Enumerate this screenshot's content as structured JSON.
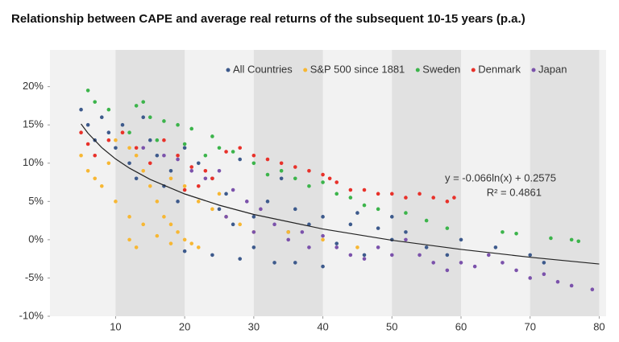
{
  "chart_data": {
    "type": "scatter",
    "title": "Relationship between CAPE and average real returns of the subsequent 10-15 years (p.a.)",
    "xlim": [
      0.5,
      81
    ],
    "ylim": [
      -10,
      24.8
    ],
    "xticks": [
      10,
      20,
      30,
      40,
      50,
      60,
      70,
      80
    ],
    "yticks": [
      {
        "value": -10,
        "label": "-10%"
      },
      {
        "value": -5,
        "label": "-5%"
      },
      {
        "value": 0,
        "label": "0%"
      },
      {
        "value": 5,
        "label": "5%"
      },
      {
        "value": 10,
        "label": "10%"
      },
      {
        "value": 15,
        "label": "15%"
      },
      {
        "value": 20,
        "label": "20%"
      }
    ],
    "annotations": [
      "y = -0.066ln(x) + 0.2575",
      "R² = 0.4861"
    ],
    "series": [
      {
        "name": "All Countries",
        "color": "#3d5a8c",
        "x": [
          5,
          6,
          7,
          8,
          9,
          10,
          11,
          12,
          13,
          14,
          15,
          16,
          17,
          18,
          19,
          20,
          22,
          24,
          25,
          26,
          27,
          28,
          30,
          32,
          33,
          34,
          35,
          36,
          38,
          40,
          42,
          44,
          46,
          48,
          50,
          52,
          55,
          58,
          60,
          65,
          70,
          72,
          24,
          28,
          30,
          20,
          36,
          40,
          45,
          50
        ],
        "values": [
          17,
          15,
          13,
          16,
          14,
          12,
          15,
          10,
          8,
          16,
          13,
          11,
          7,
          9,
          5,
          12,
          10,
          8,
          4,
          6,
          2,
          10.5,
          3,
          5,
          -3,
          8,
          1,
          4,
          2,
          3,
          -0.5,
          2,
          -2,
          1.5,
          0,
          1,
          -1,
          -2,
          0,
          -1,
          -2,
          -3,
          -2,
          -2.5,
          -1,
          -1.5,
          -3,
          -3.5,
          3.5,
          3
        ]
      },
      {
        "name": "S&P 500 since 1881",
        "color": "#f7b733",
        "x": [
          5,
          6,
          7,
          8,
          9,
          10,
          11,
          12,
          13,
          14,
          15,
          16,
          17,
          18,
          19,
          20,
          21,
          22,
          14,
          16,
          18,
          10,
          12,
          24,
          26,
          28,
          30,
          25,
          22,
          18,
          20,
          13,
          12,
          35,
          40,
          45
        ],
        "values": [
          11,
          9,
          8,
          7,
          10,
          13,
          14,
          12,
          11,
          9,
          7,
          5,
          3,
          2,
          1,
          0,
          -0.5,
          -1,
          2,
          0.5,
          -0.5,
          5,
          3,
          4,
          3,
          2,
          1,
          6,
          5,
          8,
          7,
          -1,
          0,
          1,
          0,
          -1
        ]
      },
      {
        "name": "Sweden",
        "color": "#3cb44b",
        "x": [
          6,
          7,
          9,
          13,
          14,
          15,
          17,
          19,
          21,
          24,
          25,
          27,
          20,
          23,
          30,
          32,
          34,
          36,
          38,
          40,
          42,
          44,
          46,
          48,
          52,
          55,
          58,
          66,
          68,
          73,
          76,
          77,
          12,
          16
        ],
        "values": [
          19.5,
          18,
          17,
          17.5,
          18,
          16,
          15.5,
          15,
          14.5,
          13.5,
          12,
          11.5,
          12.5,
          11,
          10,
          8.5,
          9,
          8,
          7,
          7.5,
          6,
          5.5,
          4.5,
          4,
          3.5,
          2.5,
          1.5,
          1,
          0.8,
          0.2,
          0,
          -0.2,
          14,
          13
        ]
      },
      {
        "name": "Denmark",
        "color": "#e8312a",
        "x": [
          5,
          6,
          7,
          9,
          11,
          13,
          15,
          17,
          19,
          21,
          23,
          24,
          26,
          28,
          30,
          32,
          34,
          36,
          38,
          40,
          41,
          42,
          44,
          46,
          48,
          50,
          52,
          54,
          56,
          58,
          59,
          20,
          22
        ],
        "values": [
          14,
          12.5,
          11,
          13,
          14,
          12,
          10,
          13,
          11,
          9.5,
          9,
          8,
          11.5,
          12,
          11,
          10.5,
          10,
          9.5,
          9,
          8.5,
          8,
          7.5,
          6.5,
          6.5,
          6,
          6,
          5.5,
          6,
          5.5,
          5,
          5.5,
          6.5,
          7
        ]
      },
      {
        "name": "Japan",
        "color": "#7b52ab",
        "x": [
          14,
          17,
          19,
          21,
          23,
          25,
          27,
          29,
          31,
          33,
          35,
          37,
          38,
          40,
          42,
          44,
          46,
          48,
          50,
          52,
          54,
          56,
          58,
          60,
          62,
          64,
          66,
          68,
          70,
          72,
          74,
          76,
          79,
          26,
          30
        ],
        "values": [
          12,
          11,
          10.5,
          9,
          8,
          9,
          6.5,
          5,
          4,
          2,
          0,
          1,
          -1,
          0.5,
          -1,
          -2,
          -2.5,
          -1,
          -2,
          0,
          -2,
          -3,
          -4,
          -3,
          -3.5,
          -2,
          -3,
          -4,
          -5,
          -4.5,
          -5.5,
          -6,
          -6.5,
          3,
          1
        ]
      }
    ],
    "trendline": {
      "color": "#222",
      "x": [
        5,
        6,
        8,
        10,
        12,
        15,
        20,
        25,
        30,
        40,
        50,
        60,
        70,
        80
      ],
      "values": [
        15.13,
        13.92,
        12.03,
        10.55,
        9.35,
        7.88,
        5.98,
        4.51,
        3.3,
        1.4,
        -0.07,
        -1.27,
        -2.29,
        -3.17
      ]
    }
  }
}
